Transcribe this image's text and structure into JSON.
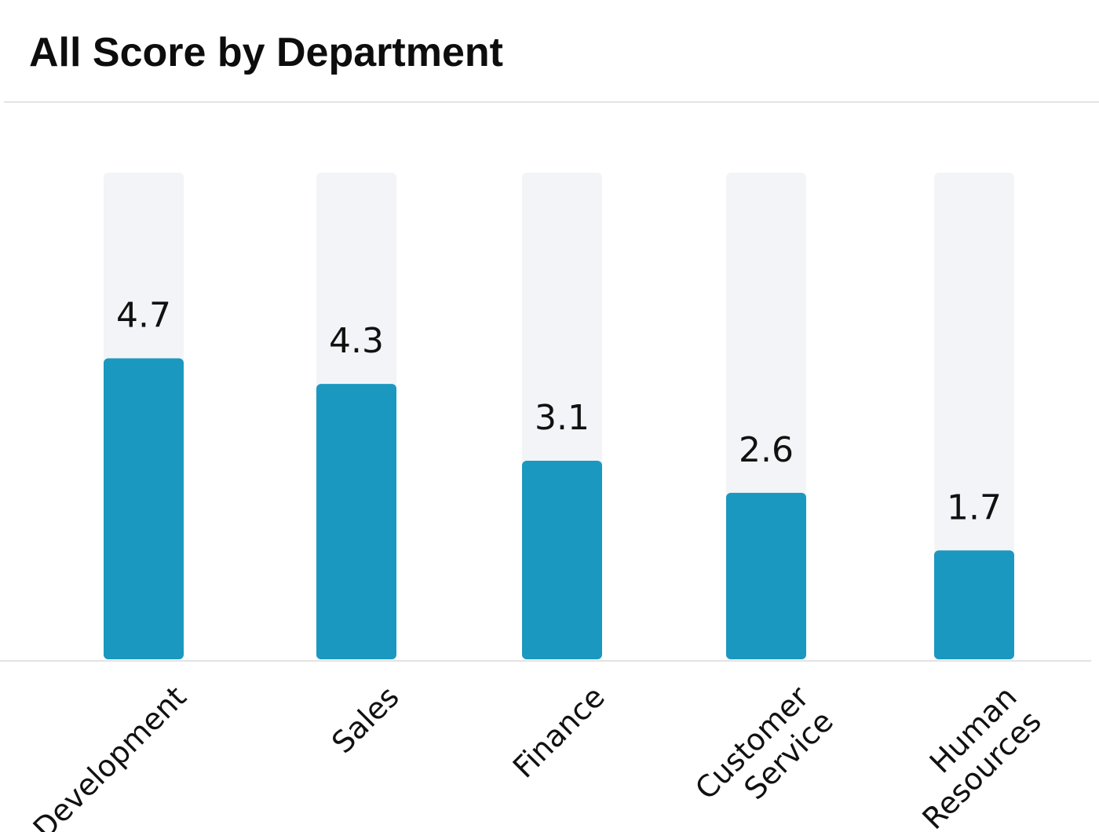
{
  "title": "All Score by Department",
  "colors": {
    "bar": "#1a98c0",
    "track": "#f3f4f7",
    "baseline": "#e2e2e2",
    "text": "#111111"
  },
  "chart_data": {
    "type": "bar",
    "title": "All Score by Department",
    "xlabel": "",
    "ylabel": "",
    "ylim": [
      0,
      6
    ],
    "grid": false,
    "legend": "none",
    "categories": [
      "Development",
      "Sales",
      "Finance",
      "Customer Service",
      "Human Resources"
    ],
    "category_label_lines": [
      [
        "Development"
      ],
      [
        "Sales"
      ],
      [
        "Finance"
      ],
      [
        "Customer",
        "Service"
      ],
      [
        "Human",
        "Resources"
      ]
    ],
    "values": [
      4.7,
      4.3,
      3.1,
      2.6,
      1.7
    ],
    "value_labels": [
      "4.7",
      "4.3",
      "3.1",
      "2.6",
      "1.7"
    ]
  }
}
